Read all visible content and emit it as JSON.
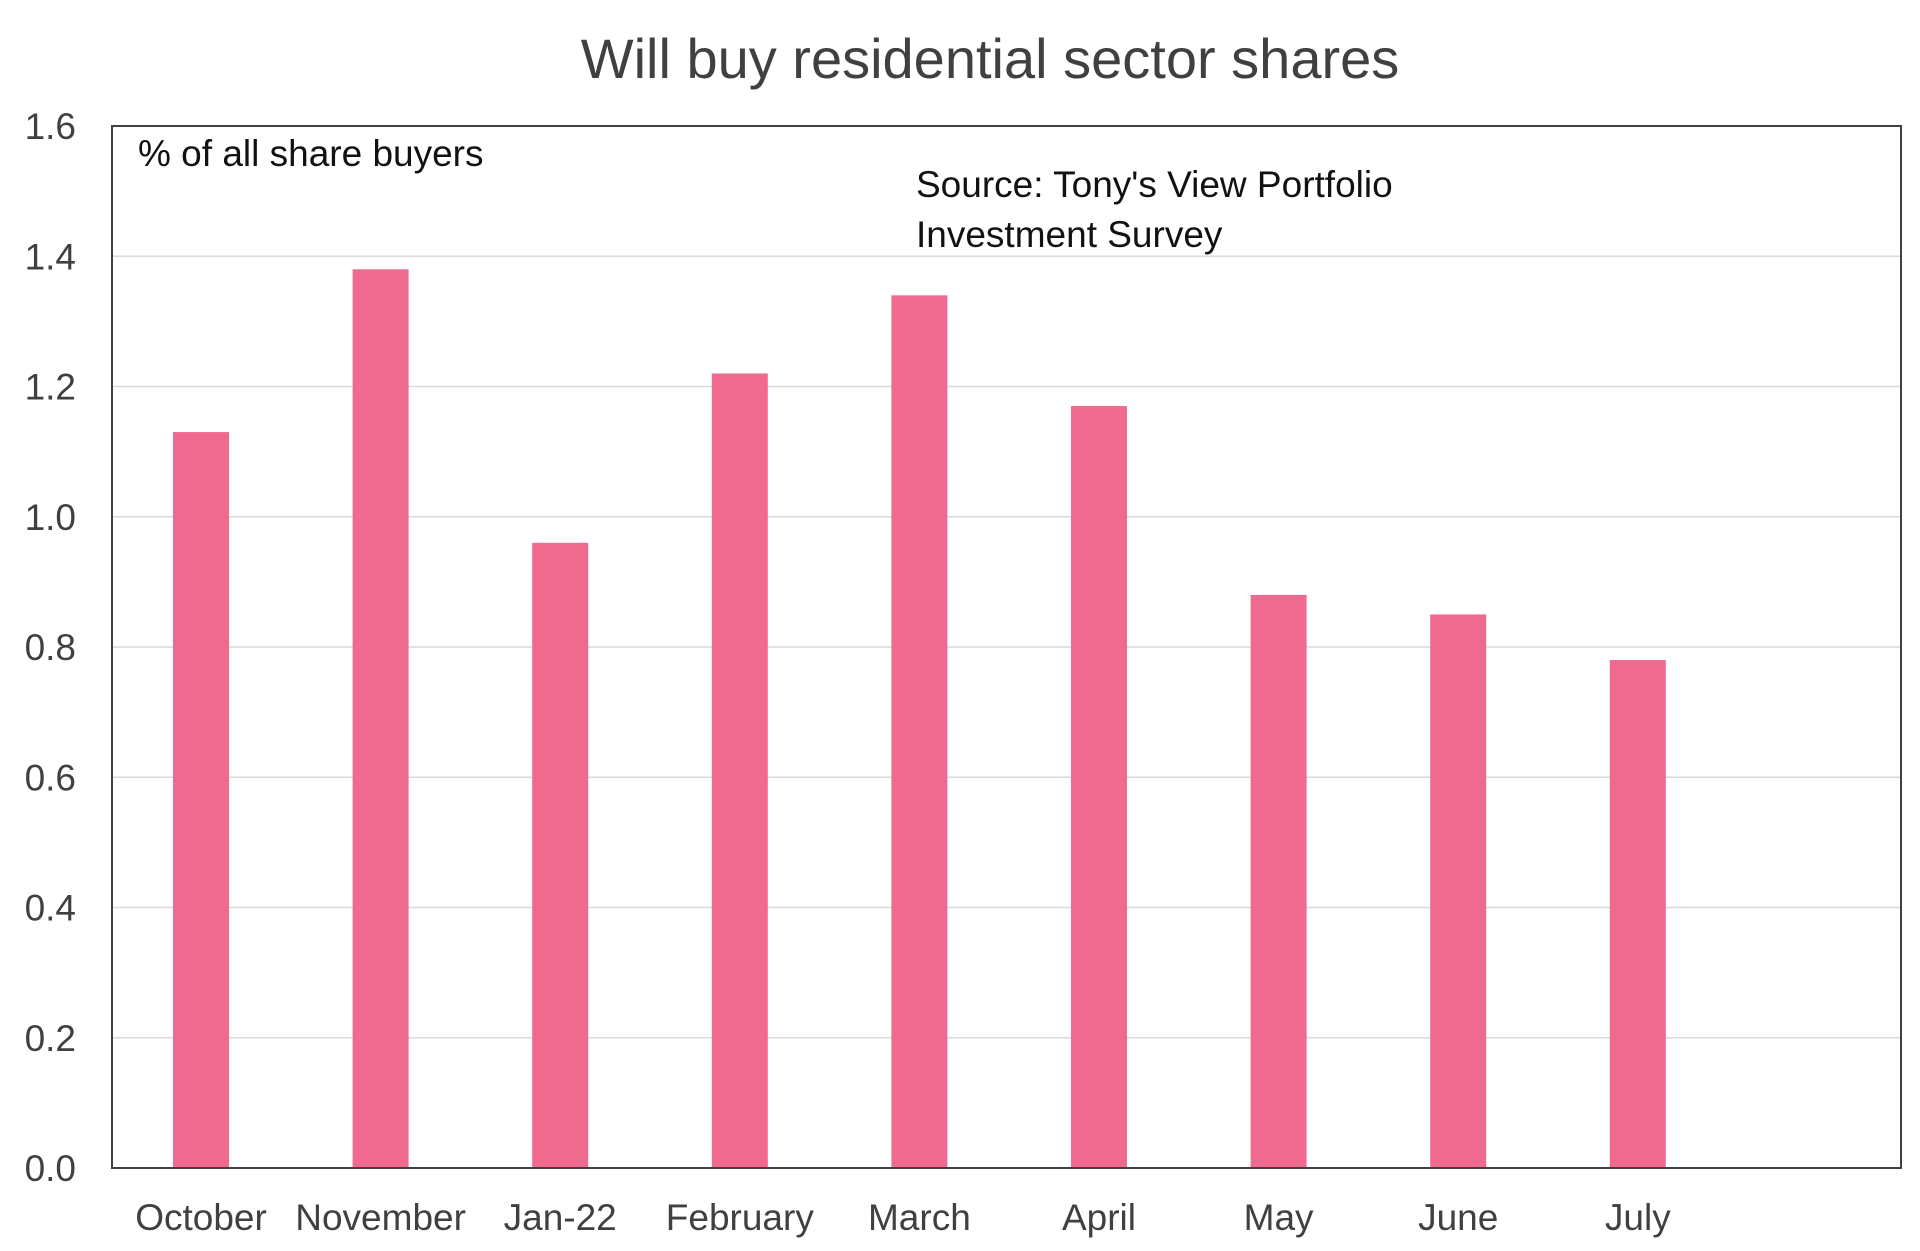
{
  "chart_data": {
    "type": "bar",
    "title": "Will buy residential sector shares",
    "ylabel": "% of all share buyers",
    "xlabel": "",
    "source_lines": [
      "Source: Tony's View Portfolio",
      "Investment Survey"
    ],
    "categories": [
      "October",
      "November",
      "Jan-22",
      "February",
      "March",
      "April",
      "May",
      "June",
      "July"
    ],
    "values": [
      1.13,
      1.38,
      0.96,
      1.22,
      1.34,
      1.17,
      0.88,
      0.85,
      0.78
    ],
    "ylim": [
      0,
      1.6
    ],
    "yticks": [
      "0.0",
      "0.2",
      "0.4",
      "0.6",
      "0.8",
      "1.0",
      "1.2",
      "1.4",
      "1.6"
    ],
    "grid": true,
    "legend": "none",
    "bar_color": "#ef6a8e",
    "grid_color": "#d9d9d9",
    "axis_color": "#404040"
  }
}
